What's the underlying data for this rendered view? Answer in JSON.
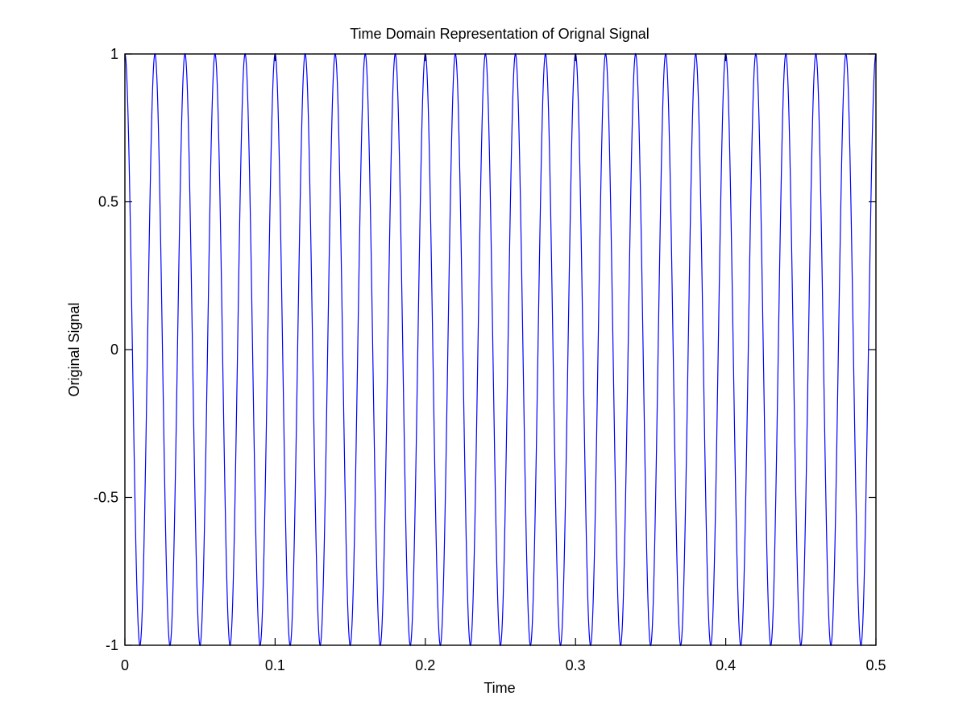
{
  "chart_data": {
    "type": "line",
    "title": "Time Domain Representation of Orignal Signal",
    "xlabel": "Time",
    "ylabel": "Original Signal",
    "xlim": [
      0,
      0.5
    ],
    "ylim": [
      -1,
      1
    ],
    "xticks": [
      0,
      0.1,
      0.2,
      0.3,
      0.4,
      0.5
    ],
    "xtick_labels": [
      "0",
      "0.1",
      "0.2",
      "0.3",
      "0.4",
      "0.5"
    ],
    "yticks": [
      -1,
      -0.5,
      0,
      0.5,
      1
    ],
    "ytick_labels": [
      "-1",
      "-0.5",
      "0",
      "0.5",
      "1"
    ],
    "grid": false,
    "legend": "none",
    "series": [
      {
        "function": "cos(2*pi*50*t)",
        "frequency_hz": 50,
        "amplitude": 1,
        "x_range": [
          0,
          0.5
        ],
        "sample_step": 0.0002,
        "color": "#0000ff"
      }
    ]
  },
  "colors": {
    "line": "#0000ff",
    "axes": "#000000",
    "background": "#ffffff"
  }
}
